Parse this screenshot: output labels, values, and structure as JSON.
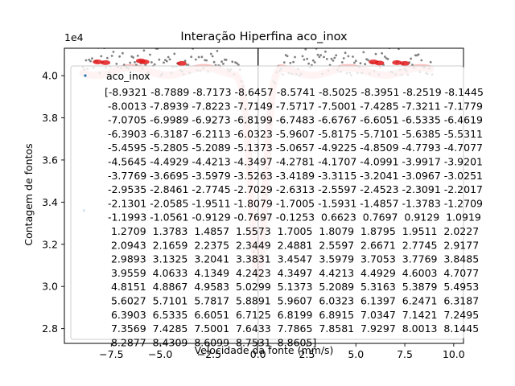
{
  "chart_data": {
    "type": "scatter",
    "title": "Interação Hiperfina aco_inox",
    "xlabel": "Velocidade da fonte (mm/s)",
    "ylabel": "Contagem de fontos",
    "offset_text": "1e4",
    "xlim": [
      -9.9,
      10.5
    ],
    "ylim": [
      27300,
      41300
    ],
    "x_ticks": [
      -7.5,
      -5.0,
      -2.5,
      0.0,
      2.5,
      5.0,
      7.5,
      10.0
    ],
    "x_tick_labels": [
      "−7.5",
      "−5.0",
      "−2.5",
      "0.0",
      "2.5",
      "5.0",
      "7.5",
      "10.0"
    ],
    "y_ticks": [
      28000,
      30000,
      32000,
      34000,
      36000,
      38000,
      40000
    ],
    "y_tick_labels": [
      "2.8",
      "3.0",
      "3.2",
      "3.4",
      "3.6",
      "3.8",
      "4.0"
    ],
    "grid": false,
    "legend_placement": "upper-left",
    "series": [
      {
        "name": "aco_inox",
        "color": "#1f77b4",
        "marker": "point",
        "points": [
          [
            -8.9,
            33600
          ]
        ]
      }
    ],
    "overlay_colors": {
      "raw_counts": "#808080",
      "fit_curve": "#ffc0c0",
      "fit_highlight": "#e31a1c",
      "zero_line": "#000000"
    },
    "legend_lines": [
      "[-8.9321 -8.7889 -8.7173 -8.6457 -8.5741 -8.5025 -8.3951 -8.2519 -8.1445",
      " -8.0013 -7.8939 -7.8223 -7.7149 -7.5717 -7.5001 -7.4285 -7.3211 -7.1779",
      " -7.0705 -6.9989 -6.9273 -6.8199 -6.7483 -6.6767 -6.6051 -6.5335 -6.4619",
      " -6.3903 -6.3187 -6.2113 -6.0323 -5.9607 -5.8175 -5.7101 -5.6385 -5.5311",
      " -5.4595 -5.2805 -5.2089 -5.1373 -5.0657 -4.9225 -4.8509 -4.7793 -4.7077",
      " -4.5645 -4.4929 -4.4213 -4.3497 -4.2781 -4.1707 -4.0991 -3.9917 -3.9201",
      " -3.7769 -3.6695 -3.5979 -3.5263 -3.4189 -3.3115 -3.2041 -3.0967 -3.0251",
      " -2.9535 -2.8461 -2.7745 -2.7029 -2.6313 -2.5597 -2.4523 -2.3091 -2.2017",
      " -2.1301 -2.0585 -1.9511 -1.8079 -1.7005 -1.5931 -1.4857 -1.3783 -1.2709",
      " -1.1993 -1.0561 -0.9129 -0.7697 -0.1253  0.6623  0.7697  0.9129  1.0919",
      "  1.2709  1.3783  1.4857  1.5573  1.7005  1.8079  1.8795  1.9511  2.0227",
      "  2.0943  2.1659  2.2375  2.3449  2.4881  2.5597  2.6671  2.7745  2.9177",
      "  2.9893  3.1325  3.2041  3.3831  3.4547  3.5979  3.7053  3.7769  3.8485",
      "  3.9559  4.0633  4.1349  4.2423  4.3497  4.4213  4.4929  4.6003  4.7077",
      "  4.8151  4.8867  4.9583  5.0299  5.1373  5.2089  5.3163  5.3879  5.4953",
      "  5.6027  5.7101  5.7817  5.8891  5.9607  6.0323  6.1397  6.2471  6.3187",
      "  6.3903  6.5335  6.6051  6.7125  6.8199  6.8915  7.0347  7.1421  7.2495",
      "  7.3569  7.4285  7.5001  7.6433  7.7865  7.8581  7.9297  8.0013  8.1445",
      "  8.2877  8.4309  8.6099  8.7531  8.8605]"
    ]
  }
}
